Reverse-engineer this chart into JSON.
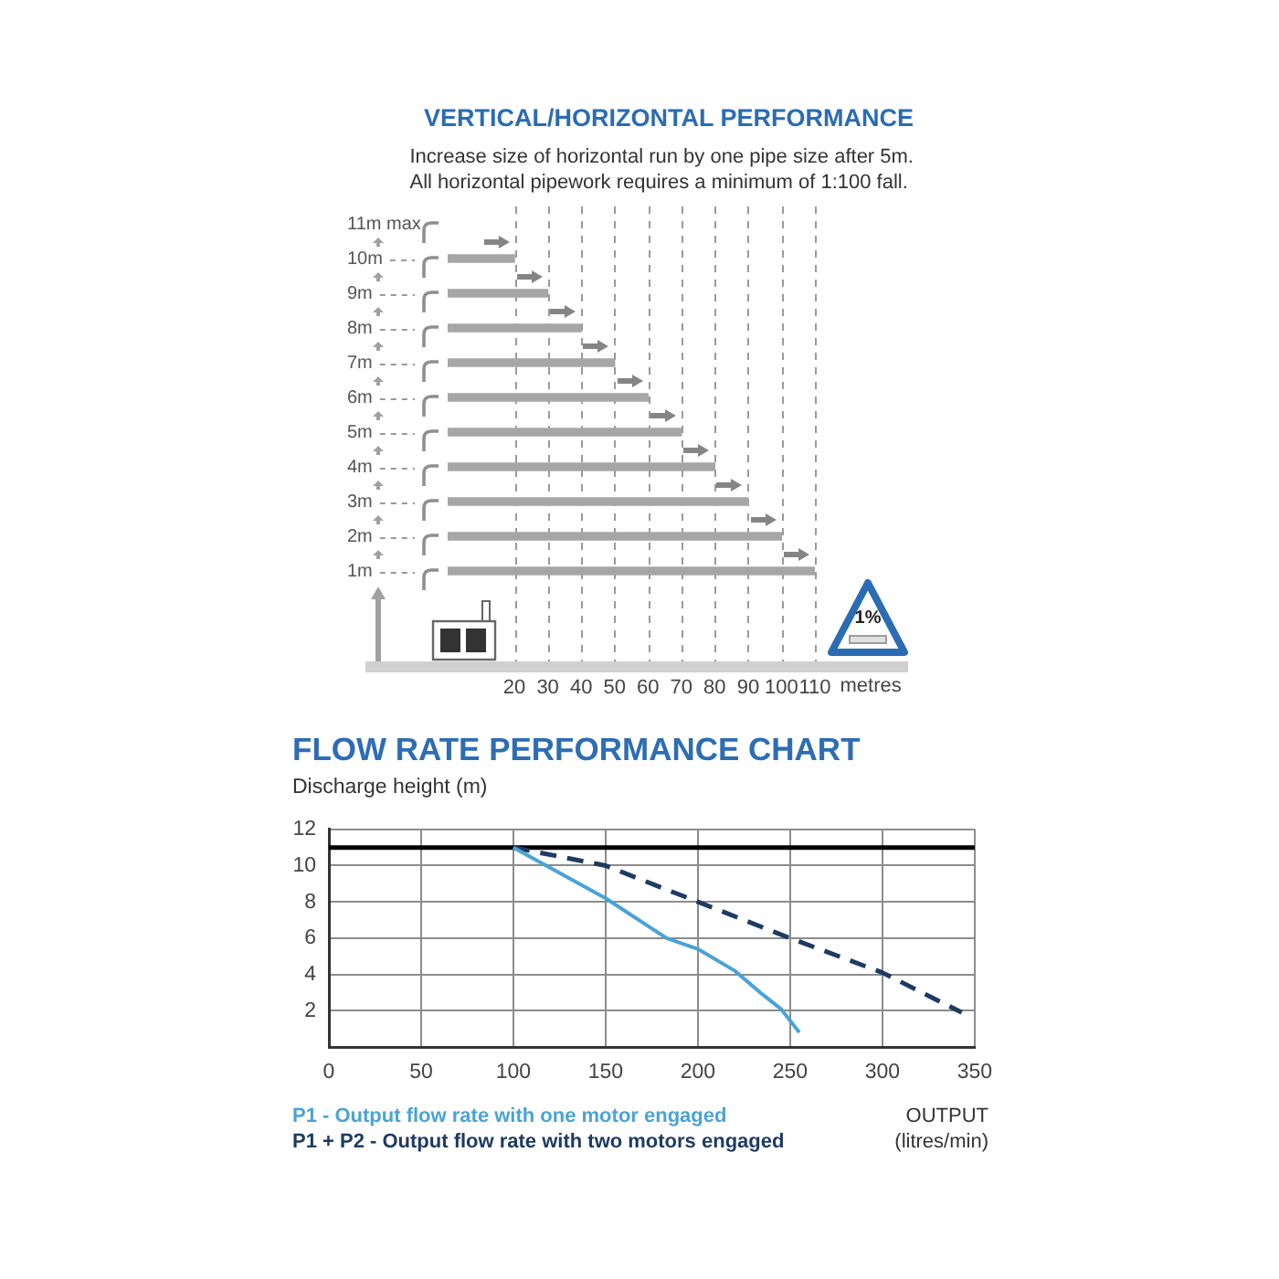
{
  "chart_data": [
    {
      "type": "bar",
      "orientation": "horizontal",
      "title": "VERTICAL/HORIZONTAL PERFORMANCE",
      "subtitle": "Increase size of horizontal run by one pipe size after 5m.\nAll horizontal pipework requires a minimum of 1:100 fall.",
      "categories": [
        "11m max",
        "10m",
        "9m",
        "8m",
        "7m",
        "6m",
        "5m",
        "4m",
        "3m",
        "2m",
        "1m"
      ],
      "values": [
        null,
        20,
        30,
        40,
        50,
        60,
        70,
        80,
        90,
        100,
        110
      ],
      "color": "#a6a6a6",
      "xlabel": "metres",
      "xlim": [
        0,
        110
      ],
      "xticks": [
        20,
        30,
        40,
        50,
        60,
        70,
        80,
        90,
        100,
        110
      ],
      "grid": "x",
      "annotations": [
        "1%"
      ]
    },
    {
      "type": "line",
      "title": "FLOW RATE PERFORMANCE CHART",
      "ylabel": "Discharge height (m)",
      "xlabel": "OUTPUT (litres/min)",
      "series": [
        {
          "name": "P1 - Output flow rate with one motor engaged",
          "color": "#4aa3d6",
          "line_style": "solid",
          "x": [
            100,
            150,
            183,
            200,
            220,
            235,
            245,
            255
          ],
          "values": [
            11,
            8.2,
            6,
            5.4,
            4.2,
            2.9,
            2.1,
            0.8
          ]
        },
        {
          "name": "P1 + P2 - Output flow rate with two motors engaged",
          "color": "#1f3b63",
          "line_style": "dashed",
          "x": [
            100,
            150,
            200,
            250,
            300,
            343
          ],
          "values": [
            11,
            10,
            8,
            6,
            4.1,
            1.9
          ]
        }
      ],
      "xlim": [
        0,
        350
      ],
      "xticks": [
        0,
        50,
        100,
        150,
        200,
        250,
        300,
        350
      ],
      "ylim": [
        0,
        12
      ],
      "yticks": [
        2,
        4,
        6,
        8,
        10,
        12
      ],
      "grid": true,
      "legend": "bottom",
      "marker": "none",
      "ref_lines": [
        {
          "axis": "y",
          "value": 11,
          "color": "#000000"
        }
      ]
    }
  ]
}
